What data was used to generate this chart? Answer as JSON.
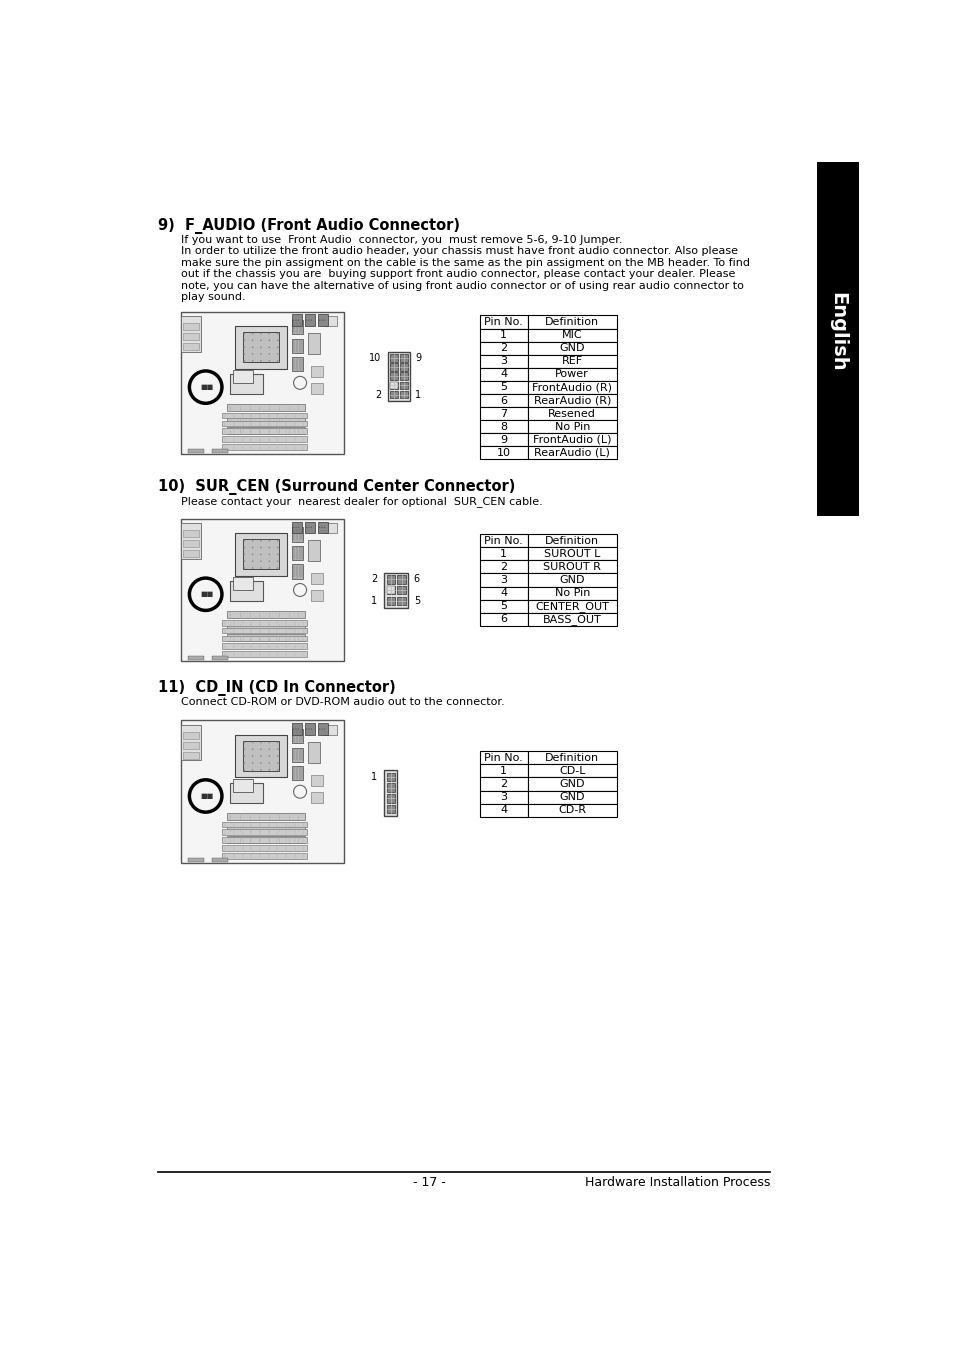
{
  "page_bg": "#ffffff",
  "sidebar_text": "English",
  "section9_title": "9)  F_AUDIO (Front Audio Connector)",
  "section9_body_lines": [
    "If you want to use  Front Audio  connector, you  must remove 5-6, 9-10 Jumper.",
    "In order to utilize the front audio header, your chassis must have front audio connector. Also please",
    "make sure the pin assigment on the cable is the same as the pin assigment on the MB header. To find",
    "out if the chassis you are  buying support front audio connector, please contact your dealer. Please",
    "note, you can have the alternative of using front audio connector or of using rear audio connector to",
    "play sound."
  ],
  "table9_headers": [
    "Pin No.",
    "Definition"
  ],
  "table9_rows": [
    [
      "1",
      "MIC"
    ],
    [
      "2",
      "GND"
    ],
    [
      "3",
      "REF"
    ],
    [
      "4",
      "Power"
    ],
    [
      "5",
      "FrontAudio (R)"
    ],
    [
      "6",
      "RearAudio (R)"
    ],
    [
      "7",
      "Resened"
    ],
    [
      "8",
      "No Pin"
    ],
    [
      "9",
      "FrontAudio (L)"
    ],
    [
      "10",
      "RearAudio (L)"
    ]
  ],
  "section10_title": "10)  SUR_CEN (Surround Center Connector)",
  "section10_body": "Please contact your  nearest dealer for optional  SUR_CEN cable.",
  "table10_headers": [
    "Pin No.",
    "Definition"
  ],
  "table10_rows": [
    [
      "1",
      "SUROUT L"
    ],
    [
      "2",
      "SUROUT R"
    ],
    [
      "3",
      "GND"
    ],
    [
      "4",
      "No Pin"
    ],
    [
      "5",
      "CENTER_OUT"
    ],
    [
      "6",
      "BASS_OUT"
    ]
  ],
  "section11_title": "11)  CD_IN (CD In Connector)",
  "section11_body": "Connect CD-ROM or DVD-ROM audio out to the connector.",
  "table11_headers": [
    "Pin No.",
    "Definition"
  ],
  "table11_rows": [
    [
      "1",
      "CD-L"
    ],
    [
      "2",
      "GND"
    ],
    [
      "3",
      "GND"
    ],
    [
      "4",
      "CD-R"
    ]
  ],
  "footer_left": "- 17 -",
  "footer_right": "Hardware Installation Process",
  "title_fontsize": 10.5,
  "body_fontsize": 8.0,
  "table_fontsize": 8.0
}
